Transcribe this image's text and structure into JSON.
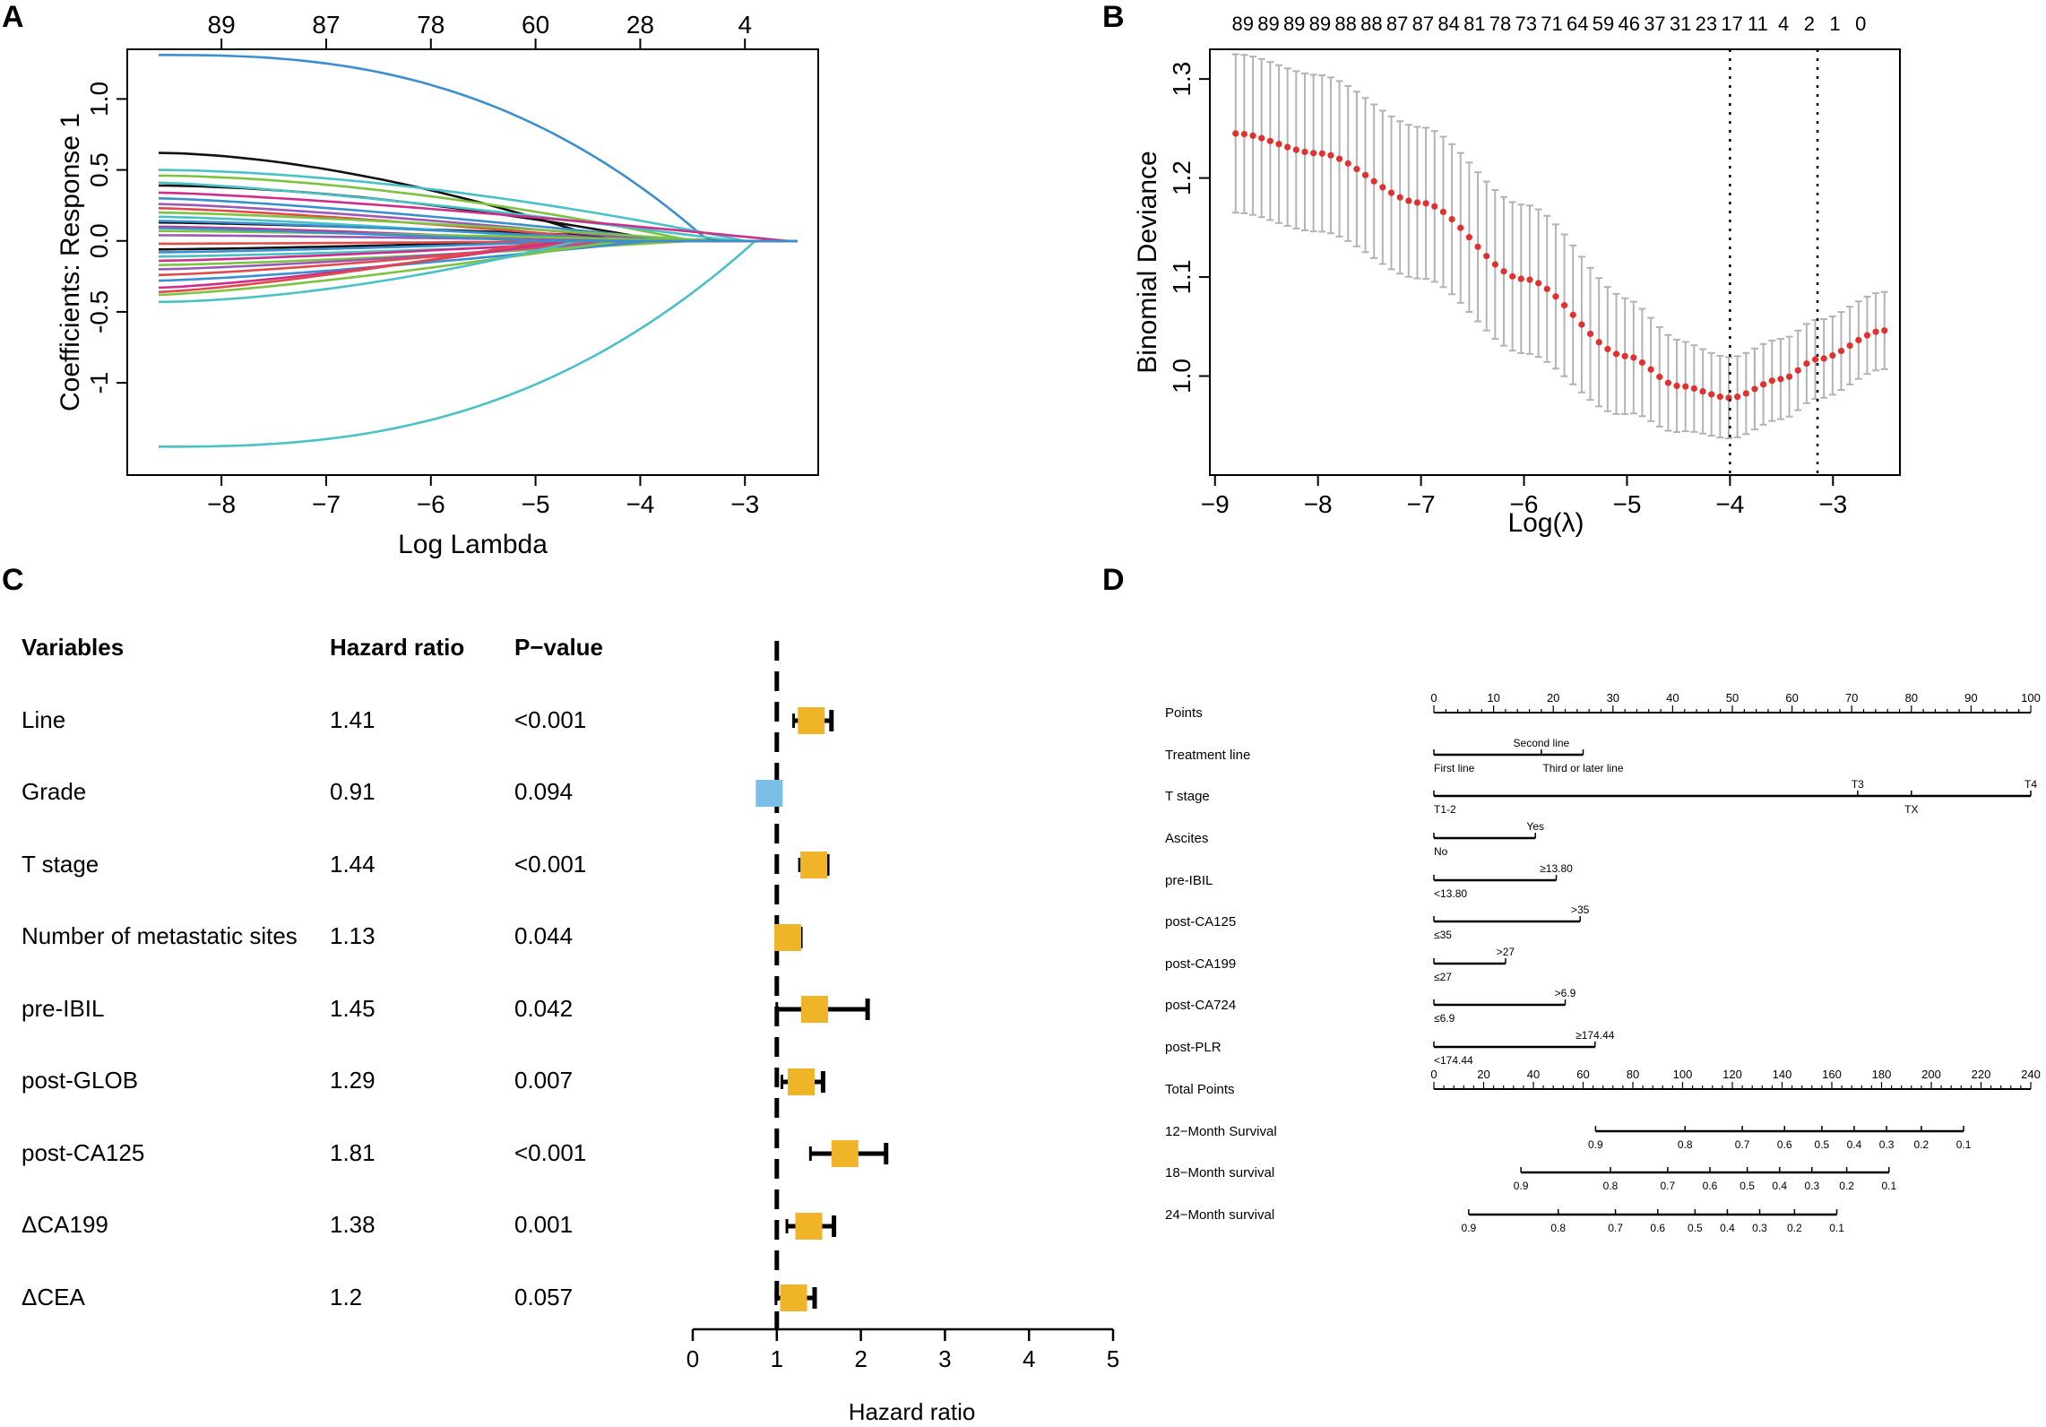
{
  "panels": {
    "A": "A",
    "B": "B",
    "C": "C",
    "D": "D"
  },
  "chart_data": [
    {
      "type": "line",
      "panel": "A",
      "xlabel": "Log Lambda",
      "ylabel": "Coefficients: Response 1",
      "xlim": [
        -8.9,
        -2.3
      ],
      "ylim": [
        -1.65,
        1.35
      ],
      "xticks": [
        -8,
        -7,
        -6,
        -5,
        -4,
        -3
      ],
      "yticks": [
        -1,
        -0.5,
        0.0,
        0.5,
        1.0
      ],
      "ytick_labels": [
        "-1",
        "-0.5",
        "0.0",
        "0.5",
        "1.0"
      ],
      "top_ticks": [
        -8,
        -7,
        -6,
        -5,
        -4,
        -3
      ],
      "top_labels": [
        "89",
        "87",
        "78",
        "60",
        "28",
        "4"
      ],
      "x_start": -8.6,
      "x_end": -2.5,
      "series": [
        {
          "color": "#3a8fd1",
          "start": 1.31,
          "zero_at": -3.35,
          "shape": "late"
        },
        {
          "color": "#49c2c6",
          "start": -1.45,
          "zero_at": -2.9,
          "shape": "late"
        },
        {
          "color": "#111111",
          "start": 0.62,
          "zero_at": -4.3,
          "shape": "mid"
        },
        {
          "color": "#111111",
          "start": 0.39,
          "zero_at": -3.8,
          "shape": "mid"
        },
        {
          "color": "#111111",
          "start": 0.13,
          "zero_at": -3.2,
          "shape": "flat"
        },
        {
          "color": "#111111",
          "start": -0.06,
          "zero_at": -4.8,
          "shape": "flat"
        },
        {
          "color": "#49c2c6",
          "start": 0.5,
          "zero_at": -3.0,
          "shape": "mid"
        },
        {
          "color": "#7ec242",
          "start": 0.46,
          "zero_at": -3.5,
          "shape": "mid"
        },
        {
          "color": "#49c2c6",
          "start": 0.41,
          "zero_at": -3.1,
          "shape": "flat"
        },
        {
          "color": "#cc2e8a",
          "start": 0.34,
          "zero_at": -2.6,
          "shape": "flat"
        },
        {
          "color": "#3a8fd1",
          "start": 0.3,
          "zero_at": -3.6,
          "shape": "flat"
        },
        {
          "color": "#9b59b6",
          "start": 0.26,
          "zero_at": -3.8,
          "shape": "flat"
        },
        {
          "color": "#e24a4a",
          "start": 0.23,
          "zero_at": -4.1,
          "shape": "flat"
        },
        {
          "color": "#7ec242",
          "start": 0.2,
          "zero_at": -3.3,
          "shape": "flat"
        },
        {
          "color": "#49c2c6",
          "start": 0.17,
          "zero_at": -4.4,
          "shape": "flat"
        },
        {
          "color": "#3a8fd1",
          "start": 0.14,
          "zero_at": -3.9,
          "shape": "flat"
        },
        {
          "color": "#cc2e8a",
          "start": 0.1,
          "zero_at": -4.6,
          "shape": "flat"
        },
        {
          "color": "#7ec242",
          "start": 0.07,
          "zero_at": -3.4,
          "shape": "flat"
        },
        {
          "color": "#9b59b6",
          "start": 0.04,
          "zero_at": -4.2,
          "shape": "flat"
        },
        {
          "color": "#e24a4a",
          "start": -0.02,
          "zero_at": -4.0,
          "shape": "flat"
        },
        {
          "color": "#3a8fd1",
          "start": -0.08,
          "zero_at": -4.5,
          "shape": "flat"
        },
        {
          "color": "#49c2c6",
          "start": -0.11,
          "zero_at": -3.7,
          "shape": "flat"
        },
        {
          "color": "#cc2e8a",
          "start": -0.14,
          "zero_at": -4.3,
          "shape": "flat"
        },
        {
          "color": "#7ec242",
          "start": -0.17,
          "zero_at": -3.5,
          "shape": "flat"
        },
        {
          "color": "#9b59b6",
          "start": -0.2,
          "zero_at": -4.1,
          "shape": "flat"
        },
        {
          "color": "#e24a4a",
          "start": -0.24,
          "zero_at": -4.4,
          "shape": "flat"
        },
        {
          "color": "#3a8fd1",
          "start": -0.28,
          "zero_at": -3.9,
          "shape": "flat"
        },
        {
          "color": "#cc2e8a",
          "start": -0.33,
          "zero_at": -4.7,
          "shape": "flat"
        },
        {
          "color": "#7ec242",
          "start": -0.38,
          "zero_at": -4.2,
          "shape": "flat"
        },
        {
          "color": "#49c2c6",
          "start": -0.43,
          "zero_at": -4.6,
          "shape": "mid"
        },
        {
          "color": "#e24a4a",
          "start": -0.36,
          "zero_at": -4.9,
          "shape": "flat"
        },
        {
          "color": "#3a8fd1",
          "start": 0.09,
          "zero_at": -5.0,
          "shape": "flat"
        }
      ]
    },
    {
      "type": "scatter",
      "panel": "B",
      "xlabel": "Log(λ)",
      "ylabel": "Binomial Deviance",
      "xlim": [
        -9.05,
        -2.35
      ],
      "ylim": [
        0.9,
        1.33
      ],
      "xticks": [
        -9,
        -8,
        -7,
        -6,
        -5,
        -4,
        -3
      ],
      "yticks": [
        1.0,
        1.1,
        1.2,
        1.3
      ],
      "ytick_labels": [
        "1.0",
        "1.1",
        "1.2",
        "1.3"
      ],
      "top_labels": [
        "89",
        "89",
        "89",
        "89",
        "88",
        "88",
        "87",
        "87",
        "84",
        "81",
        "78",
        "73",
        "71",
        "64",
        "59",
        "46",
        "37",
        "31",
        "23",
        "17",
        "11",
        "4",
        "2",
        "1",
        "0"
      ],
      "top_x": [
        -8.8,
        -8.55,
        -8.3,
        -8.05,
        -7.8,
        -7.55,
        -7.3,
        -7.05,
        -6.8,
        -6.55,
        -6.3,
        -6.05,
        -5.8,
        -5.55,
        -5.3,
        -5.05,
        -4.8,
        -4.55,
        -4.3,
        -4.05,
        -3.8,
        -3.55,
        -3.3,
        -3.05,
        -2.8
      ],
      "vlines": [
        -4.0,
        -3.15
      ],
      "x_start": -8.8,
      "x_end": -2.5,
      "n_points": 76,
      "curve_anchors": [
        [
          -8.8,
          1.245
        ],
        [
          -8.0,
          1.225
        ],
        [
          -7.0,
          1.175
        ],
        [
          -6.0,
          1.098
        ],
        [
          -5.0,
          1.02
        ],
        [
          -4.5,
          0.99
        ],
        [
          -4.0,
          0.978
        ],
        [
          -3.5,
          0.997
        ],
        [
          -3.15,
          1.017
        ],
        [
          -2.5,
          1.046
        ]
      ],
      "error_halfwidth": [
        [
          -8.8,
          0.08
        ],
        [
          -6.0,
          0.075
        ],
        [
          -4.0,
          0.041
        ],
        [
          -2.5,
          0.039
        ]
      ],
      "point_color": "#e0312e",
      "bar_color": "#b3b3b3"
    },
    {
      "type": "forest",
      "panel": "C",
      "headers": {
        "variables": "Variables",
        "hr": "Hazard ratio",
        "p": "P−value"
      },
      "xlabel": "Hazard ratio",
      "xlim": [
        0,
        5
      ],
      "xticks": [
        0,
        1,
        2,
        3,
        4,
        5
      ],
      "ref_line": 1,
      "rows": [
        {
          "variable": "Line",
          "hr_label": "1.41",
          "p": "<0.001",
          "hr": 1.41,
          "lo": 1.2,
          "hi": 1.65,
          "color": "#f0b429"
        },
        {
          "variable": "Grade",
          "hr_label": "0.91",
          "p": "0.094",
          "hr": 0.91,
          "lo": 0.82,
          "hi": 1.0,
          "color": "#7bbfe8"
        },
        {
          "variable": "T stage",
          "hr_label": "1.44",
          "p": "<0.001",
          "hr": 1.44,
          "lo": 1.27,
          "hi": 1.6,
          "color": "#f0b429"
        },
        {
          "variable": "Number of metastatic sites",
          "hr_label": "1.13",
          "p": "0.044",
          "hr": 1.13,
          "lo": 1.0,
          "hi": 1.28,
          "color": "#f0b429"
        },
        {
          "variable": "pre-IBIL",
          "hr_label": "1.45",
          "p": "0.042",
          "hr": 1.45,
          "lo": 1.0,
          "hi": 2.08,
          "color": "#f0b429"
        },
        {
          "variable": "post-GLOB",
          "hr_label": "1.29",
          "p": "0.007",
          "hr": 1.29,
          "lo": 1.06,
          "hi": 1.55,
          "color": "#f0b429"
        },
        {
          "variable": "post-CA125",
          "hr_label": "1.81",
          "p": "<0.001",
          "hr": 1.81,
          "lo": 1.4,
          "hi": 2.3,
          "color": "#f0b429"
        },
        {
          "variable": "ΔCA199",
          "hr_label": "1.38",
          "p": "0.001",
          "hr": 1.38,
          "lo": 1.12,
          "hi": 1.68,
          "color": "#f0b429"
        },
        {
          "variable": "ΔCEA",
          "hr_label": "1.2",
          "p": "0.057",
          "hr": 1.2,
          "lo": 0.99,
          "hi": 1.45,
          "color": "#f0b429"
        }
      ]
    },
    {
      "type": "nomogram",
      "panel": "D",
      "rows": [
        {
          "label": "Points",
          "kind": "scale",
          "range": [
            0,
            100
          ],
          "ticks": [
            0,
            10,
            20,
            30,
            40,
            50,
            60,
            70,
            80,
            90,
            100
          ]
        },
        {
          "label": "Treatment line",
          "kind": "factor",
          "span": [
            0,
            25
          ],
          "levels": [
            {
              "text": "First line",
              "at": 0,
              "pos": "below"
            },
            {
              "text": "Second line",
              "at": 18,
              "pos": "above"
            },
            {
              "text": "Third or later line",
              "at": 25,
              "pos": "below"
            }
          ]
        },
        {
          "label": "T stage",
          "kind": "factor",
          "span": [
            0,
            100
          ],
          "levels": [
            {
              "text": "T1-2",
              "at": 0,
              "pos": "below"
            },
            {
              "text": "T3",
              "at": 71,
              "pos": "above"
            },
            {
              "text": "TX",
              "at": 80,
              "pos": "below"
            },
            {
              "text": "T4",
              "at": 100,
              "pos": "above"
            }
          ]
        },
        {
          "label": "Ascites",
          "kind": "factor",
          "span": [
            0,
            17
          ],
          "levels": [
            {
              "text": "No",
              "at": 0,
              "pos": "below"
            },
            {
              "text": "Yes",
              "at": 17,
              "pos": "above"
            }
          ]
        },
        {
          "label": "pre-IBIL",
          "kind": "factor",
          "span": [
            0,
            20.5
          ],
          "levels": [
            {
              "text": "<13.80",
              "at": 0,
              "pos": "below"
            },
            {
              "text": "≥13.80",
              "at": 20.5,
              "pos": "above"
            }
          ]
        },
        {
          "label": "post-CA125",
          "kind": "factor",
          "span": [
            0,
            24.5
          ],
          "levels": [
            {
              "text": "≤35",
              "at": 0,
              "pos": "below"
            },
            {
              "text": ">35",
              "at": 24.5,
              "pos": "above"
            }
          ]
        },
        {
          "label": "post-CA199",
          "kind": "factor",
          "span": [
            0,
            12
          ],
          "levels": [
            {
              "text": "≤27",
              "at": 0,
              "pos": "below"
            },
            {
              "text": ">27",
              "at": 12,
              "pos": "above"
            }
          ]
        },
        {
          "label": "post-CA724",
          "kind": "factor",
          "span": [
            0,
            22
          ],
          "levels": [
            {
              "text": "≤6.9",
              "at": 0,
              "pos": "below"
            },
            {
              "text": ">6.9",
              "at": 22,
              "pos": "above"
            }
          ]
        },
        {
          "label": "post-PLR",
          "kind": "factor",
          "span": [
            0,
            27
          ],
          "levels": [
            {
              "text": "<174.44",
              "at": 0,
              "pos": "below"
            },
            {
              "text": "≥174.44",
              "at": 27,
              "pos": "above"
            }
          ]
        },
        {
          "label": "Total Points",
          "kind": "scale",
          "range": [
            0,
            240
          ],
          "ticks": [
            0,
            20,
            40,
            60,
            80,
            100,
            120,
            140,
            160,
            180,
            200,
            220,
            240
          ]
        },
        {
          "label": "12−Month Survival",
          "kind": "prob",
          "ticks": [
            [
              "0.9",
              65
            ],
            [
              "0.8",
              101
            ],
            [
              "0.7",
              124
            ],
            [
              "0.6",
              141
            ],
            [
              "0.5",
              156
            ],
            [
              "0.4",
              169
            ],
            [
              "0.3",
              182
            ],
            [
              "0.2",
              196
            ],
            [
              "0.1",
              213
            ]
          ],
          "line": [
            65,
            213
          ]
        },
        {
          "label": "18−Month survival",
          "kind": "prob",
          "ticks": [
            [
              "0.9",
              35
            ],
            [
              "0.8",
              71
            ],
            [
              "0.7",
              94
            ],
            [
              "0.6",
              111
            ],
            [
              "0.5",
              126
            ],
            [
              "0.4",
              139
            ],
            [
              "0.3",
              152
            ],
            [
              "0.2",
              166
            ],
            [
              "0.1",
              183
            ]
          ],
          "line": [
            35,
            183
          ]
        },
        {
          "label": "24−Month survival",
          "kind": "prob",
          "ticks": [
            [
              "0.9",
              14
            ],
            [
              "0.8",
              50
            ],
            [
              "0.7",
              73
            ],
            [
              "0.6",
              90
            ],
            [
              "0.5",
              105
            ],
            [
              "0.4",
              118
            ],
            [
              "0.3",
              131
            ],
            [
              "0.2",
              145
            ],
            [
              "0.1",
              162
            ]
          ],
          "line": [
            14,
            162
          ]
        }
      ]
    }
  ]
}
